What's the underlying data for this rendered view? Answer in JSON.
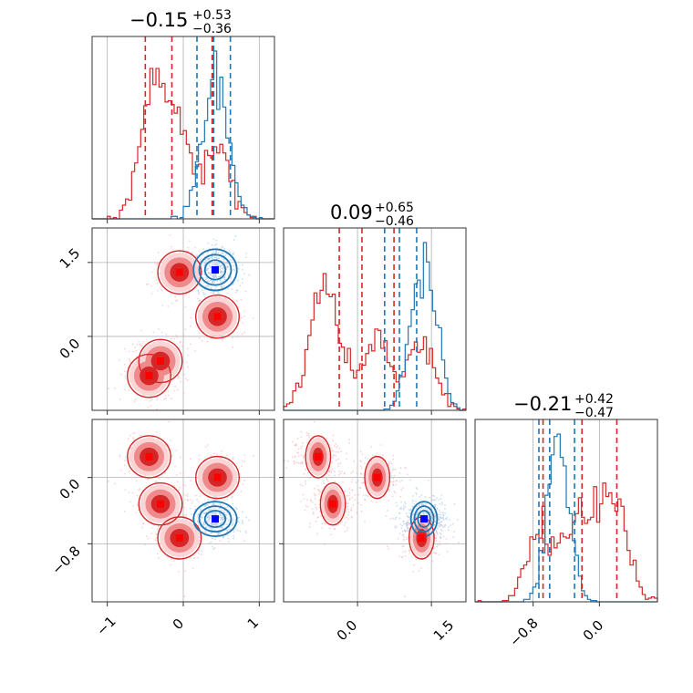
{
  "chart_data": {
    "type": "corner",
    "colors": {
      "red": "#d62728",
      "blue": "#1f77b4",
      "red_mid": "#ee8a8b",
      "red_light": "#fbd5d5",
      "red_marker": "#ff0000",
      "blue_marker": "#0000ff"
    },
    "grid": true,
    "params": [
      {
        "title": {
          "median": "−0.15",
          "plus": "+0.53",
          "minus": "−0.36"
        },
        "range": [
          -1.2,
          1.2
        ],
        "ticks": [
          -1,
          0,
          1
        ],
        "ticklabels": [
          "−1",
          "0",
          "1"
        ],
        "red_quantiles": [
          -0.5,
          -0.15,
          0.38
        ],
        "blue_quantiles": [
          0.18,
          0.4,
          0.62
        ]
      },
      {
        "title": {
          "median": "0.09",
          "plus": "+0.65",
          "minus": "−0.46"
        },
        "range": [
          -1.5,
          2.2
        ],
        "ticks": [
          0.0,
          1.5
        ],
        "ticklabels": [
          "0.0",
          "1.5"
        ],
        "red_quantiles": [
          -0.37,
          0.09,
          0.74
        ],
        "blue_quantiles": [
          0.55,
          0.85,
          1.2
        ]
      },
      {
        "title": {
          "median": "−0.21",
          "plus": "+0.42",
          "minus": "−0.47"
        },
        "range": [
          -1.5,
          0.7
        ],
        "ticks": [
          -0.8,
          0.0
        ],
        "ticklabels": [
          "−0.8",
          "0.0"
        ],
        "red_quantiles": [
          -0.68,
          -0.21,
          0.21
        ],
        "blue_quantiles": [
          -0.73,
          -0.6,
          -0.3
        ]
      }
    ],
    "red_points": [
      {
        "p0": -0.45,
        "p1": -0.8,
        "p2": 0.25
      },
      {
        "p0": -0.3,
        "p1": -0.5,
        "p2": -0.32
      },
      {
        "p0": -0.05,
        "p1": 1.3,
        "p2": -0.73
      },
      {
        "p0": 0.45,
        "p1": 0.4,
        "p2": 0.0
      }
    ],
    "blue_point": {
      "p0": 0.42,
      "p1": 1.35,
      "p2": -0.5
    }
  }
}
